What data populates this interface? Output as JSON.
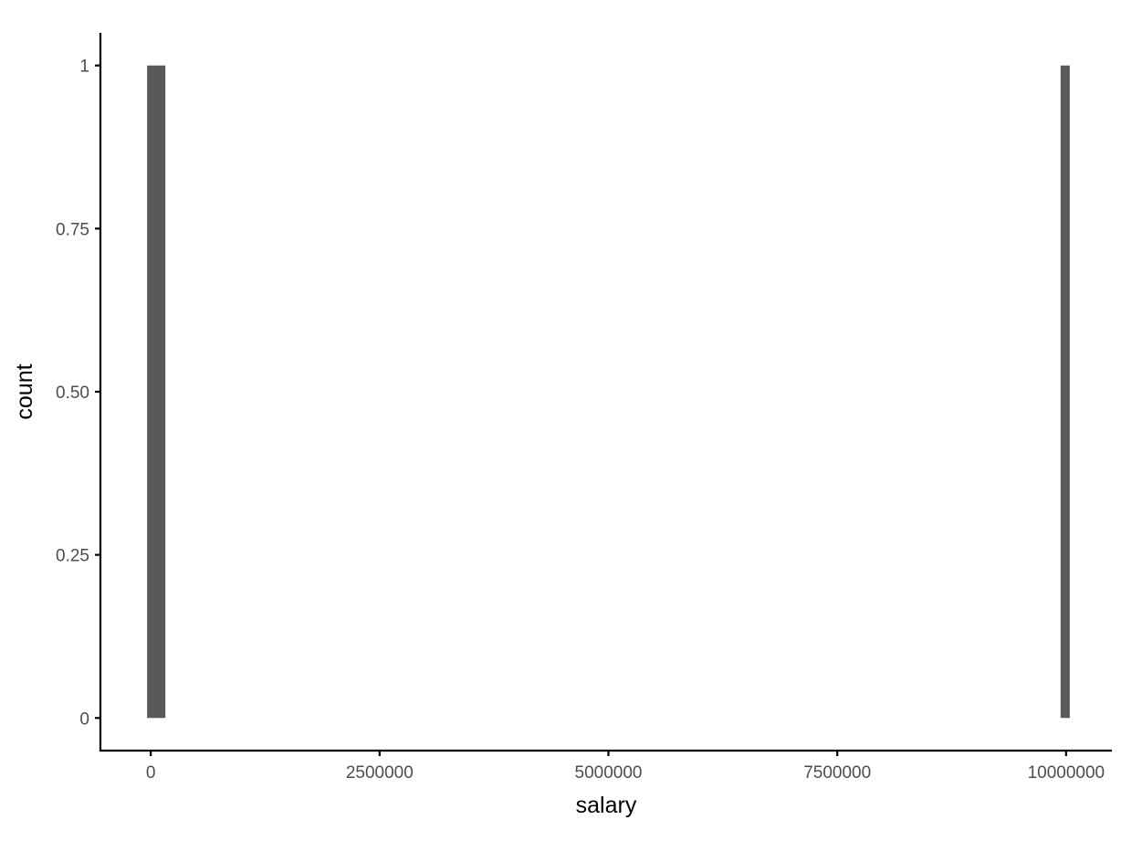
{
  "chart_data": {
    "type": "bar",
    "xlabel": "salary",
    "ylabel": "count",
    "bar_color": "#595959",
    "grid": false,
    "legend": "none",
    "xlim": [
      -550000,
      10500000
    ],
    "ylim": [
      -0.05,
      1.05
    ],
    "x_ticks": [
      {
        "value": 0,
        "label": "0"
      },
      {
        "value": 2500000,
        "label": "2500000"
      },
      {
        "value": 5000000,
        "label": "5000000"
      },
      {
        "value": 7500000,
        "label": "7500000"
      },
      {
        "value": 10000000,
        "label": "10000000"
      }
    ],
    "y_ticks": [
      {
        "value": 0,
        "label": "0"
      },
      {
        "value": 0.25,
        "label": "0.25"
      },
      {
        "value": 0.5,
        "label": "0.50"
      },
      {
        "value": 0.75,
        "label": "0.75"
      },
      {
        "value": 1,
        "label": "1"
      }
    ],
    "bins": [
      {
        "x_start": -40000,
        "x_end": 160000,
        "count": 1
      },
      {
        "x_start": 9940000,
        "x_end": 10040000,
        "count": 1
      }
    ]
  }
}
